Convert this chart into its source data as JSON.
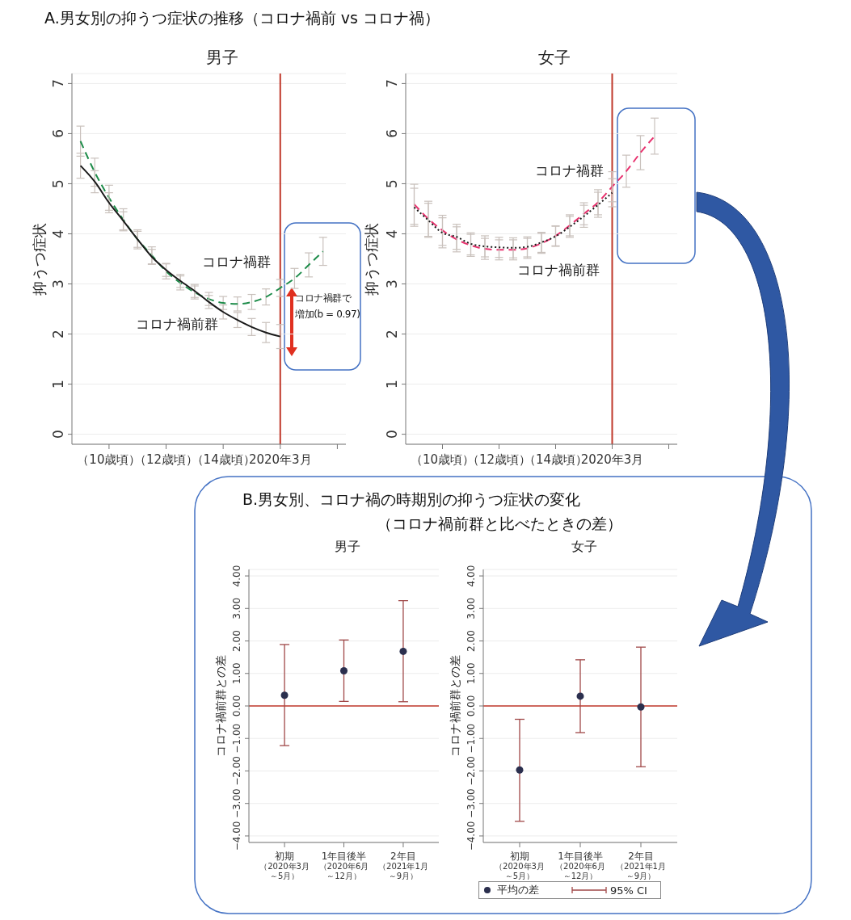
{
  "chart_data": [
    {
      "type": "line",
      "title": "男子",
      "ylabel": "抑うつ症状",
      "annotations": [
        "A.男女別の抑うつ症状の推移（コロナ禍前 vs コロナ禍）",
        "コロナ禍群で",
        "増加(b = 0.97)"
      ],
      "categories": [
        null,
        null,
        "（10歳頃）",
        null,
        null,
        null,
        "（12歳頃）",
        null,
        null,
        null,
        "（14歳頃）",
        null,
        null,
        null,
        "2020年3月",
        null,
        null,
        null,
        null
      ],
      "ylim": [
        -0.2,
        7.2
      ],
      "yticks": [
        0,
        1,
        2,
        3,
        4,
        5,
        6,
        7
      ],
      "grid": "y",
      "marker": "none",
      "ref_lines": [
        {
          "axis": "x",
          "value": "2020年3月",
          "color": "#c0392b"
        }
      ],
      "series": [
        {
          "name": "コロナ禍群",
          "color": "#1e8c4a",
          "line_style": "dashed",
          "values": [
            5.85,
            5.23,
            4.72,
            4.28,
            3.89,
            3.57,
            3.25,
            3.02,
            2.83,
            2.7,
            2.62,
            2.6,
            2.64,
            2.74,
            2.92,
            3.11,
            3.38,
            3.65,
            null
          ],
          "errors": [
            0.3,
            0.28,
            0.25,
            0.22,
            0.19,
            0.17,
            0.15,
            0.14,
            0.13,
            0.13,
            0.13,
            0.14,
            0.15,
            0.16,
            0.17,
            0.2,
            0.24,
            0.28,
            null
          ]
        },
        {
          "name": "コロナ禍前群",
          "color": "#1a1a1a",
          "line_style": "solid",
          "values": [
            5.36,
            5.04,
            4.62,
            4.26,
            3.89,
            3.54,
            3.28,
            3.06,
            2.86,
            2.64,
            2.44,
            2.28,
            2.14,
            2.03,
            1.95,
            null,
            null,
            null,
            null
          ],
          "errors": [
            0.25,
            0.22,
            0.2,
            0.18,
            0.16,
            0.15,
            0.13,
            0.13,
            0.13,
            0.13,
            0.14,
            0.15,
            0.17,
            0.2,
            0.24,
            null,
            null,
            null,
            null
          ]
        }
      ]
    },
    {
      "type": "line",
      "title": "女子",
      "ylabel": "抑うつ症状",
      "categories": [
        null,
        null,
        "（10歳頃）",
        null,
        null,
        null,
        "（12歳頃）",
        null,
        null,
        null,
        "（14歳頃）",
        null,
        null,
        null,
        "2020年3月",
        null,
        null,
        null,
        null
      ],
      "ylim": [
        -0.2,
        7.2
      ],
      "yticks": [
        0,
        1,
        2,
        3,
        4,
        5,
        6,
        7
      ],
      "grid": "y",
      "marker": "none",
      "ref_lines": [
        {
          "axis": "x",
          "value": "2020年3月",
          "color": "#c0392b"
        }
      ],
      "series": [
        {
          "name": "コロナ禍群",
          "color": "#e8336f",
          "line_style": "dashed",
          "values": [
            4.59,
            4.3,
            4.07,
            3.89,
            3.77,
            3.7,
            3.68,
            3.68,
            3.71,
            3.81,
            3.96,
            4.17,
            4.4,
            4.63,
            4.94,
            5.25,
            5.62,
            5.95,
            null
          ],
          "errors": [
            0.4,
            0.35,
            0.3,
            0.25,
            0.22,
            0.21,
            0.2,
            0.2,
            0.2,
            0.2,
            0.2,
            0.21,
            0.22,
            0.25,
            0.3,
            0.32,
            0.34,
            0.36,
            null
          ]
        },
        {
          "name": "コロナ禍前群",
          "color": "#1a1a1a",
          "line_style": "dotted",
          "values": [
            4.53,
            4.27,
            4.02,
            3.94,
            3.8,
            3.75,
            3.73,
            3.72,
            3.74,
            3.83,
            3.95,
            4.14,
            4.35,
            4.58,
            4.82,
            null,
            null,
            null,
            null
          ],
          "errors": [
            0.38,
            0.34,
            0.3,
            0.25,
            0.22,
            0.21,
            0.2,
            0.2,
            0.2,
            0.2,
            0.2,
            0.21,
            0.22,
            0.25,
            0.28,
            null,
            null,
            null,
            null
          ]
        }
      ]
    },
    {
      "type": "scatter",
      "title": "男子",
      "ylabel": "コロナ禍前群との差",
      "annotations": [
        "B.男女別、コロナ禍の時期別の抑うつ症状の変化",
        "（コロナ禍前群と比べたときの差）"
      ],
      "categories": [
        "初期（2020年3月～5月）",
        "1年目後半（2020年6月～12月）",
        "2年目（2021年1月～9月）"
      ],
      "ylim": [
        -4.2,
        4.2
      ],
      "yticks": [
        {
          "value": -4,
          "label": "−4.00"
        },
        {
          "value": -3,
          "label": "−3.00"
        },
        {
          "value": -2,
          "label": "−2.00"
        },
        {
          "value": -1,
          "label": "−1.00"
        },
        {
          "value": 0,
          "label": "0.00"
        },
        {
          "value": 1,
          "label": "1.00"
        },
        {
          "value": 2,
          "label": "2.00"
        },
        {
          "value": 3,
          "label": "3.00"
        },
        {
          "value": 4,
          "label": "4.00"
        }
      ],
      "grid": "y",
      "marker": "circle",
      "ref_lines": [
        {
          "axis": "y",
          "value": 0,
          "color": "#c0392b"
        }
      ],
      "series": [
        {
          "color": "#2b2f4e",
          "values": [
            0.33,
            1.08,
            1.68
          ],
          "errors": [
            [
              -1.22,
              1.89
            ],
            [
              0.14,
              2.03
            ],
            [
              0.13,
              3.24
            ]
          ]
        }
      ]
    },
    {
      "type": "scatter",
      "title": "女子",
      "ylabel": "コロナ禍前群との差",
      "annotations": [
        "95% CI"
      ],
      "categories": [
        "初期（2020年3月～5月）",
        "1年目後半（2020年6月～12月）",
        "2年目（2021年1月～9月）"
      ],
      "ylim": [
        -4.2,
        4.2
      ],
      "yticks": [
        {
          "value": -4,
          "label": "−4.00"
        },
        {
          "value": -3,
          "label": "−3.00"
        },
        {
          "value": -2,
          "label": "−2.00"
        },
        {
          "value": -1,
          "label": "−1.00"
        },
        {
          "value": 0,
          "label": "0.00"
        },
        {
          "value": 1,
          "label": "1.00"
        },
        {
          "value": 2,
          "label": "2.00"
        },
        {
          "value": 3,
          "label": "3.00"
        },
        {
          "value": 4,
          "label": "4.00"
        }
      ],
      "grid": "y",
      "marker": "circle",
      "legend": "bottom",
      "ref_lines": [
        {
          "axis": "y",
          "value": 0,
          "color": "#c0392b"
        }
      ],
      "series": [
        {
          "name": "平均の差",
          "color": "#2b2f4e",
          "values": [
            -1.97,
            0.3,
            -0.03
          ],
          "errors": [
            [
              -3.55,
              -0.41
            ],
            [
              -0.82,
              1.42
            ],
            [
              -1.87,
              1.81
            ]
          ]
        }
      ]
    }
  ]
}
